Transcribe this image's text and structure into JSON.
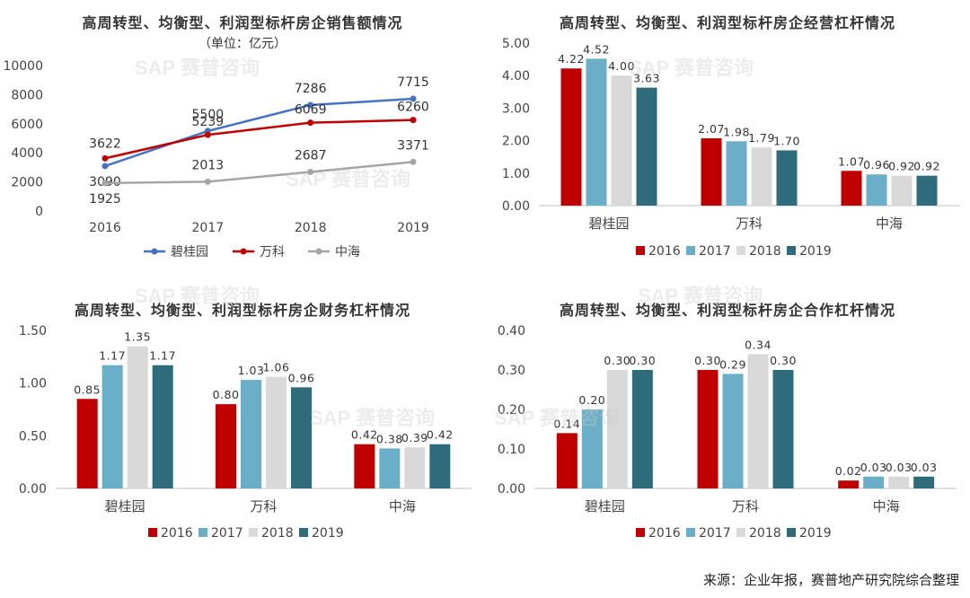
{
  "colors": {
    "2016": "#c00000",
    "2017": "#6aaec8",
    "2018": "#d9d9d9",
    "2019": "#2e6b7b",
    "bgy": "#4472c4",
    "vanke": "#c00000",
    "coli": "#a5a5a5"
  },
  "watermark": "SAP 赛普咨询",
  "footer": "来源：企业年报，赛普地产研究院综合整理",
  "charts": [
    {
      "id": "sales",
      "title": "高周转型、均衡型、利润型标杆房企销售额情况",
      "subtitle": "（单位：亿元）",
      "chart_data": {
        "type": "line",
        "categories": [
          "2016",
          "2017",
          "2018",
          "2019"
        ],
        "ylim": [
          0,
          10000
        ],
        "yticks": [
          "0",
          "2000",
          "4000",
          "6000",
          "8000",
          "10000"
        ],
        "series": [
          {
            "name": "碧桂园",
            "values": [
              3090,
              5500,
              7286,
              7715
            ]
          },
          {
            "name": "万科",
            "values": [
              3622,
              5239,
              6069,
              6260
            ]
          },
          {
            "name": "中海",
            "values": [
              1925,
              2013,
              2687,
              3371
            ]
          }
        ],
        "legend": "bottom"
      }
    },
    {
      "id": "operating",
      "title": "高周转型、均衡型、利润型标杆房企经营杠杆情况",
      "chart_data": {
        "type": "bar",
        "categories": [
          "碧桂园",
          "万科",
          "中海"
        ],
        "ylim": [
          0,
          5
        ],
        "yticks": [
          "0.00",
          "1.00",
          "2.00",
          "3.00",
          "4.00",
          "5.00"
        ],
        "series": [
          {
            "name": "2016",
            "values": [
              4.22,
              2.07,
              1.07
            ]
          },
          {
            "name": "2017",
            "values": [
              4.52,
              1.98,
              0.96
            ]
          },
          {
            "name": "2018",
            "values": [
              4.0,
              1.79,
              0.92
            ]
          },
          {
            "name": "2019",
            "values": [
              3.63,
              1.7,
              0.92
            ]
          }
        ],
        "labels": [
          [
            "4.22",
            "2.07",
            "1.07"
          ],
          [
            "4.52",
            "1.98",
            "0.96"
          ],
          [
            "4.00",
            "1.79",
            "0.92"
          ],
          [
            "3.63",
            "1.70",
            "0.92"
          ]
        ],
        "legend": "bottom"
      }
    },
    {
      "id": "financial",
      "title": "高周转型、均衡型、利润型标杆房企财务杠杆情况",
      "chart_data": {
        "type": "bar",
        "categories": [
          "碧桂园",
          "万科",
          "中海"
        ],
        "ylim": [
          0,
          1.5
        ],
        "yticks": [
          "0.00",
          "0.50",
          "1.00",
          "1.50"
        ],
        "series": [
          {
            "name": "2016",
            "values": [
              0.85,
              0.8,
              0.42
            ]
          },
          {
            "name": "2017",
            "values": [
              1.17,
              1.03,
              0.38
            ]
          },
          {
            "name": "2018",
            "values": [
              1.35,
              1.06,
              0.39
            ]
          },
          {
            "name": "2019",
            "values": [
              1.17,
              0.96,
              0.42
            ]
          }
        ],
        "labels": [
          [
            "0.85",
            "0.80",
            "0.42"
          ],
          [
            "1.17",
            "1.03",
            "0.38"
          ],
          [
            "1.35",
            "1.06",
            "0.39"
          ],
          [
            "1.17",
            "0.96",
            "0.42"
          ]
        ],
        "legend": "bottom"
      }
    },
    {
      "id": "cooperation",
      "title": "高周转型、均衡型、利润型标杆房企合作杠杆情况",
      "chart_data": {
        "type": "bar",
        "categories": [
          "碧桂园",
          "万科",
          "中海"
        ],
        "ylim": [
          0,
          0.4
        ],
        "yticks": [
          "0.00",
          "0.10",
          "0.20",
          "0.30",
          "0.40"
        ],
        "series": [
          {
            "name": "2016",
            "values": [
              0.14,
              0.3,
              0.02
            ]
          },
          {
            "name": "2017",
            "values": [
              0.2,
              0.29,
              0.03
            ]
          },
          {
            "name": "2018",
            "values": [
              0.3,
              0.34,
              0.03
            ]
          },
          {
            "name": "2019",
            "values": [
              0.3,
              0.3,
              0.03
            ]
          }
        ],
        "labels": [
          [
            "0.14",
            "0.30",
            "0.02"
          ],
          [
            "0.20",
            "0.29",
            "0.03"
          ],
          [
            "0.30",
            "0.34",
            "0.03"
          ],
          [
            "0.30",
            "0.30",
            "0.03"
          ]
        ],
        "legend": "bottom"
      }
    }
  ]
}
